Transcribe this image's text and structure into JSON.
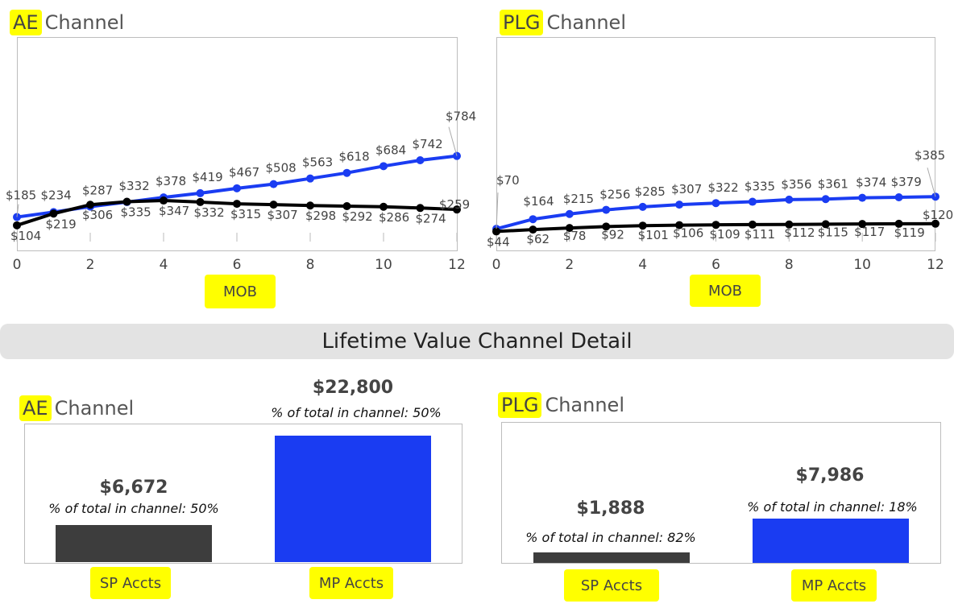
{
  "line_charts": [
    {
      "title_highlight": "AE",
      "title_rest": "Channel",
      "x_title": "MOB",
      "x_ticks": [
        0,
        2,
        4,
        6,
        8,
        10,
        12
      ]
    },
    {
      "title_highlight": "PLG",
      "title_rest": "Channel",
      "x_title": "MOB",
      "x_ticks": [
        0,
        2,
        4,
        6,
        8,
        10,
        12
      ]
    }
  ],
  "banner": "Lifetime Value Channel Detail",
  "bar_charts": [
    {
      "title_highlight": "AE",
      "title_rest": "Channel",
      "bars": [
        {
          "category": "SP Accts",
          "value_label": "$6,672",
          "pct_label": "% of total in channel: 50%"
        },
        {
          "category": "MP Accts",
          "value_label": "$22,800",
          "pct_label": "% of total in channel: 50%"
        }
      ]
    },
    {
      "title_highlight": "PLG",
      "title_rest": "Channel",
      "bars": [
        {
          "category": "SP Accts",
          "value_label": "$1,888",
          "pct_label": "% of total in channel: 82%"
        },
        {
          "category": "MP Accts",
          "value_label": "$7,986",
          "pct_label": "% of total in channel: 18%"
        }
      ]
    }
  ],
  "chart_data": [
    {
      "type": "line",
      "title": "AE Channel",
      "xlabel": "MOB",
      "ylabel": "",
      "x": [
        0,
        1,
        2,
        3,
        4,
        5,
        6,
        7,
        8,
        9,
        10,
        11,
        12
      ],
      "xlim": [
        0,
        12
      ],
      "ylim": [
        0,
        1000
      ],
      "series": [
        {
          "color": "#1a3cf2",
          "values": [
            185,
            234,
            287,
            332,
            378,
            419,
            467,
            508,
            563,
            618,
            684,
            742,
            784
          ],
          "labels": [
            "$185",
            "$234",
            "$287",
            "$332",
            "$378",
            "$419",
            "$467",
            "$508",
            "$563",
            "$618",
            "$684",
            "$742",
            "$784"
          ]
        },
        {
          "color": "#000000",
          "values": [
            104,
            219,
            306,
            335,
            347,
            332,
            315,
            307,
            298,
            292,
            286,
            274,
            259
          ],
          "labels": [
            "$104",
            "$219",
            "$306",
            "$335",
            "$347",
            "$332",
            "$315",
            "$307",
            "$298",
            "$292",
            "$286",
            "$274",
            "$259"
          ]
        }
      ]
    },
    {
      "type": "line",
      "title": "PLG Channel",
      "xlabel": "MOB",
      "ylabel": "",
      "x": [
        0,
        1,
        2,
        3,
        4,
        5,
        6,
        7,
        8,
        9,
        10,
        11,
        12
      ],
      "xlim": [
        0,
        12
      ],
      "ylim": [
        0,
        1000
      ],
      "series": [
        {
          "color": "#1a3cf2",
          "values": [
            70,
            164,
            215,
            256,
            285,
            307,
            322,
            335,
            356,
            361,
            374,
            379,
            385
          ],
          "labels": [
            "$70",
            "$164",
            "$215",
            "$256",
            "$285",
            "$307",
            "$322",
            "$335",
            "$356",
            "$361",
            "$374",
            "$379",
            "$385"
          ]
        },
        {
          "color": "#000000",
          "values": [
            44,
            62,
            78,
            92,
            101,
            106,
            109,
            111,
            112,
            115,
            117,
            119,
            120
          ],
          "labels": [
            "$44",
            "$62",
            "$78",
            "$92",
            "$101",
            "$106",
            "$109",
            "$111",
            "$112",
            "$115",
            "$117",
            "$119",
            "$120"
          ]
        }
      ]
    },
    {
      "type": "bar",
      "title": "AE Channel",
      "categories": [
        "SP Accts",
        "MP Accts"
      ],
      "values": [
        6672,
        22800
      ],
      "colors": [
        "#3d3d3d",
        "#1a3cf2"
      ],
      "ylim": [
        0,
        30000
      ]
    },
    {
      "type": "bar",
      "title": "PLG Channel",
      "categories": [
        "SP Accts",
        "MP Accts"
      ],
      "values": [
        1888,
        7986
      ],
      "colors": [
        "#3d3d3d",
        "#1a3cf2"
      ],
      "ylim": [
        0,
        30000
      ]
    }
  ]
}
